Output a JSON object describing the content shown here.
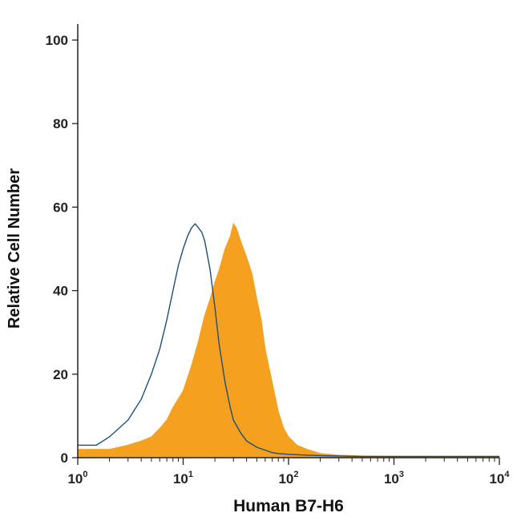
{
  "chart_data": {
    "type": "area",
    "xlabel": "Human B7-H6",
    "ylabel": "Relative Cell Number",
    "x_scale": "log",
    "xlim": [
      1,
      10000
    ],
    "ylim": [
      0,
      100
    ],
    "grid": false,
    "x_ticks": [
      {
        "base": "10",
        "exp": "0",
        "value": 1
      },
      {
        "base": "10",
        "exp": "1",
        "value": 10
      },
      {
        "base": "10",
        "exp": "2",
        "value": 100
      },
      {
        "base": "10",
        "exp": "3",
        "value": 1000
      },
      {
        "base": "10",
        "exp": "4",
        "value": 10000
      }
    ],
    "y_ticks": [
      {
        "label": "0",
        "value": 0
      },
      {
        "label": "20",
        "value": 20
      },
      {
        "label": "40",
        "value": 40
      },
      {
        "label": "60",
        "value": 60
      },
      {
        "label": "80",
        "value": 80
      },
      {
        "label": "100",
        "value": 100
      }
    ],
    "series": [
      {
        "style": "filled",
        "color": "#f5a01e",
        "x": [
          1,
          1.5,
          2,
          3,
          4,
          5,
          6,
          7,
          8,
          10,
          12,
          14,
          16,
          18,
          20,
          22,
          25,
          28,
          30,
          32,
          35,
          40,
          45,
          50,
          55,
          60,
          70,
          80,
          90,
          100,
          120,
          150,
          200,
          300,
          500,
          1000,
          3000,
          10000
        ],
        "y": [
          2,
          2,
          2,
          3,
          4,
          5,
          7,
          9,
          12,
          16,
          22,
          28,
          34,
          38,
          42,
          45,
          50,
          53,
          56,
          55,
          52,
          48,
          44,
          38,
          33,
          26,
          18,
          11,
          7,
          5,
          3,
          2,
          1,
          0.6,
          0.4,
          0.3,
          0.3,
          0.3
        ]
      },
      {
        "style": "outline",
        "color": "#1b4f7a",
        "x": [
          1,
          1.5,
          2,
          3,
          4,
          5,
          6,
          7,
          8,
          9,
          10,
          11,
          12,
          13,
          14,
          15,
          16,
          18,
          20,
          22,
          25,
          28,
          30,
          35,
          40,
          50,
          60,
          70,
          80,
          100,
          150,
          200,
          300,
          500,
          1000,
          3000,
          10000
        ],
        "y": [
          3,
          3,
          5,
          9,
          14,
          20,
          26,
          33,
          40,
          46,
          50,
          53,
          55,
          56,
          55,
          54,
          52,
          45,
          36,
          27,
          18,
          12,
          9,
          6,
          4,
          2.5,
          1.8,
          1.2,
          1,
          0.8,
          0.6,
          0.5,
          0.4,
          0.3,
          0.3,
          0.3,
          0.3
        ]
      }
    ]
  }
}
